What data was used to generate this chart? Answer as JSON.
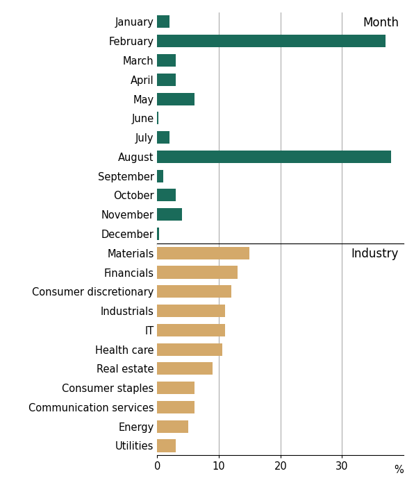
{
  "month_labels": [
    "January",
    "February",
    "March",
    "April",
    "May",
    "June",
    "July",
    "August",
    "September",
    "October",
    "November",
    "December"
  ],
  "month_values": [
    2.0,
    37.0,
    3.0,
    3.0,
    6.0,
    0.2,
    2.0,
    38.0,
    1.0,
    3.0,
    4.0,
    0.3
  ],
  "month_color": "#1a6b5a",
  "month_title": "Month",
  "industry_labels": [
    "Materials",
    "Financials",
    "Consumer discretionary",
    "Industrials",
    "IT",
    "Health care",
    "Real estate",
    "Consumer staples",
    "Communication services",
    "Energy",
    "Utilities"
  ],
  "industry_values": [
    15.0,
    13.0,
    12.0,
    11.0,
    11.0,
    10.5,
    9.0,
    6.0,
    6.0,
    5.0,
    3.0
  ],
  "industry_color": "#d4a96a",
  "industry_title": "Industry",
  "xlabel": "%",
  "xlim": [
    0,
    40
  ],
  "xticks": [
    0,
    10,
    20,
    30
  ],
  "grid_color": "#aaaaaa",
  "background_color": "#ffffff",
  "label_fontsize": 10.5,
  "title_fontsize": 12
}
